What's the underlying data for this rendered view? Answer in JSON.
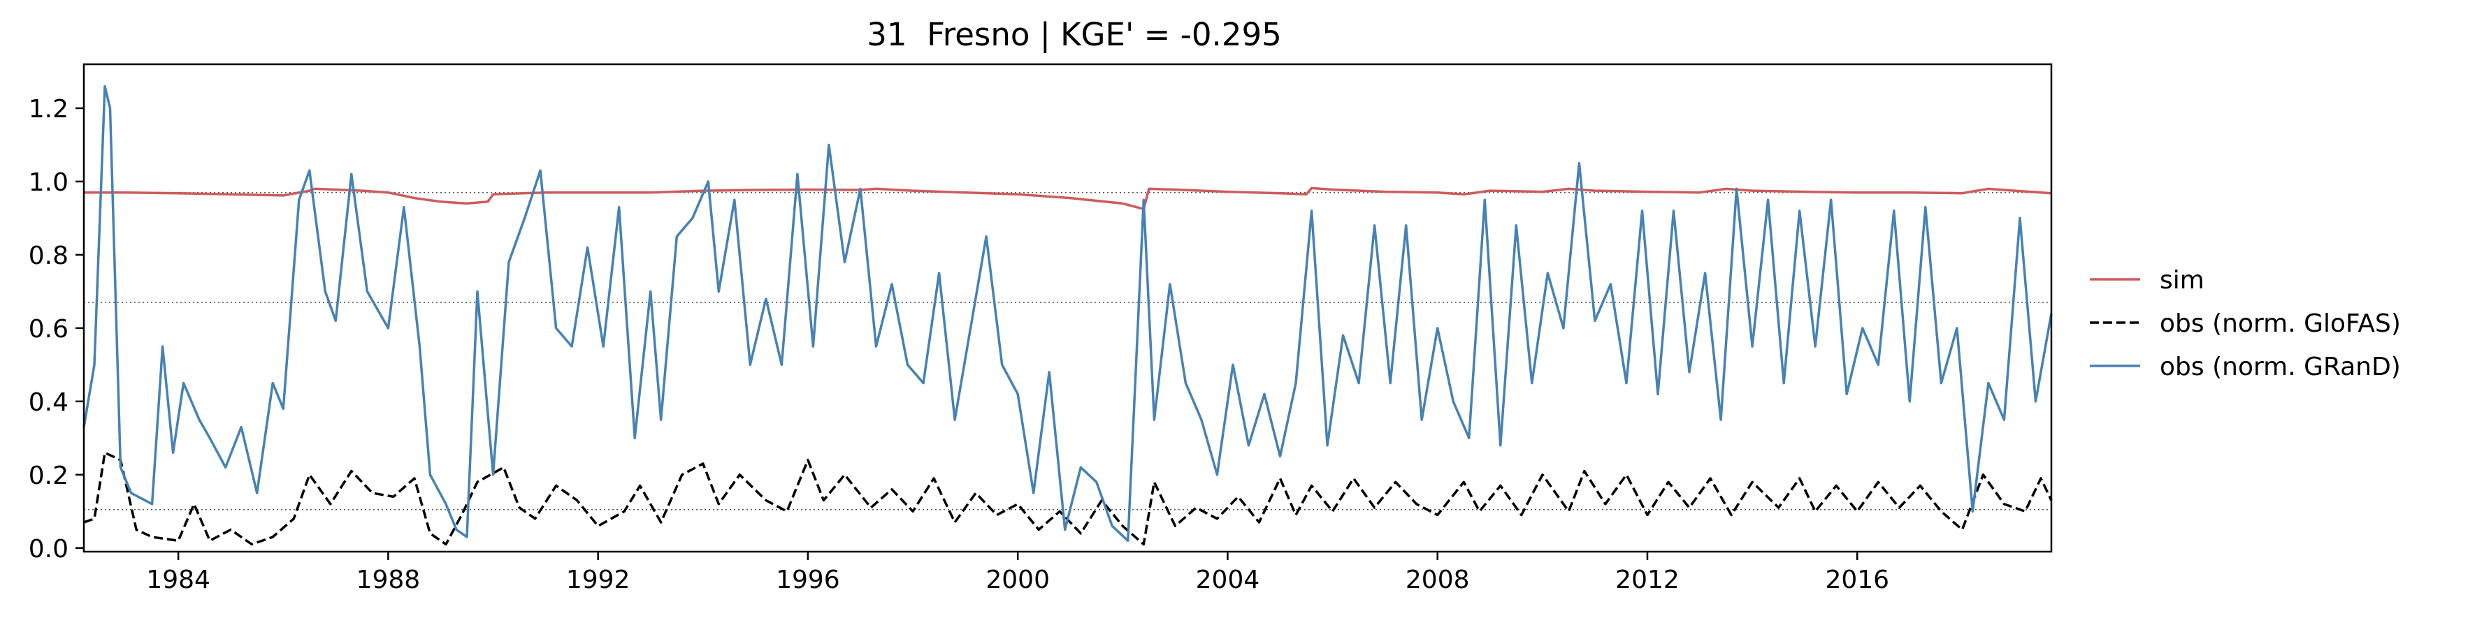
{
  "chart_data": {
    "type": "line",
    "title": "31  Fresno | KGE' = -0.295",
    "xlabel": "",
    "ylabel": "",
    "xlim": [
      1982.2,
      2019.7
    ],
    "ylim": [
      -0.01,
      1.32
    ],
    "x_ticks": [
      1984,
      1988,
      1992,
      1996,
      2000,
      2004,
      2008,
      2012,
      2016
    ],
    "y_ticks": [
      0.0,
      0.2,
      0.4,
      0.6,
      0.8,
      1.0,
      1.2
    ],
    "grid": false,
    "legend_position": "right",
    "reference_lines": [
      {
        "y": 0.97,
        "style": "dotted",
        "color": "#555555"
      },
      {
        "y": 0.67,
        "style": "dotted",
        "color": "#555555"
      },
      {
        "y": 0.105,
        "style": "dotted",
        "color": "#555555"
      }
    ],
    "series": [
      {
        "name": "sim",
        "color": "#cd5c5c",
        "dash": "solid",
        "x": [
          1982.2,
          1983.0,
          1984.0,
          1985.0,
          1986.0,
          1986.5,
          1986.6,
          1987.0,
          1987.5,
          1988.0,
          1988.5,
          1989.0,
          1989.5,
          1989.9,
          1990.0,
          1991.0,
          1992.0,
          1993.0,
          1994.0,
          1995.0,
          1996.0,
          1997.0,
          1997.3,
          1998.0,
          1999.0,
          2000.0,
          2001.0,
          2002.0,
          2002.4,
          2002.5,
          2003.0,
          2004.0,
          2005.0,
          2005.5,
          2005.6,
          2006.0,
          2007.0,
          2008.0,
          2008.5,
          2009.0,
          2010.0,
          2010.5,
          2011.0,
          2012.0,
          2013.0,
          2013.5,
          2014.0,
          2015.0,
          2016.0,
          2017.0,
          2018.0,
          2018.5,
          2019.0,
          2019.7
        ],
        "values": [
          0.97,
          0.97,
          0.968,
          0.965,
          0.962,
          0.975,
          0.98,
          0.978,
          0.975,
          0.97,
          0.955,
          0.945,
          0.94,
          0.945,
          0.965,
          0.97,
          0.97,
          0.97,
          0.975,
          0.977,
          0.978,
          0.977,
          0.98,
          0.975,
          0.97,
          0.965,
          0.955,
          0.94,
          0.925,
          0.98,
          0.978,
          0.972,
          0.968,
          0.965,
          0.982,
          0.978,
          0.972,
          0.97,
          0.965,
          0.975,
          0.972,
          0.98,
          0.975,
          0.972,
          0.97,
          0.98,
          0.975,
          0.972,
          0.97,
          0.97,
          0.968,
          0.98,
          0.975,
          0.968
        ]
      },
      {
        "name": "obs (norm. GloFAS)",
        "color": "#000000",
        "dash": "dashed",
        "x": [
          1982.2,
          1982.4,
          1982.6,
          1982.9,
          1983.2,
          1983.5,
          1984.0,
          1984.3,
          1984.6,
          1985.0,
          1985.4,
          1985.8,
          1986.2,
          1986.5,
          1986.9,
          1987.3,
          1987.7,
          1988.1,
          1988.5,
          1988.8,
          1989.1,
          1989.4,
          1989.7,
          1990.2,
          1990.5,
          1990.8,
          1991.2,
          1991.6,
          1992.0,
          1992.5,
          1992.8,
          1993.2,
          1993.6,
          1994.0,
          1994.3,
          1994.7,
          1995.2,
          1995.6,
          1996.0,
          1996.3,
          1996.7,
          1997.2,
          1997.6,
          1998.0,
          1998.4,
          1998.8,
          1999.2,
          1999.6,
          2000.0,
          2000.4,
          2000.8,
          2001.2,
          2001.6,
          2002.0,
          2002.4,
          2002.6,
          2003.0,
          2003.4,
          2003.8,
          2004.2,
          2004.6,
          2005.0,
          2005.3,
          2005.6,
          2006.0,
          2006.4,
          2006.8,
          2007.2,
          2007.6,
          2008.0,
          2008.5,
          2008.8,
          2009.2,
          2009.6,
          2010.0,
          2010.5,
          2010.8,
          2011.2,
          2011.6,
          2012.0,
          2012.4,
          2012.8,
          2013.2,
          2013.6,
          2014.0,
          2014.5,
          2014.9,
          2015.2,
          2015.6,
          2016.0,
          2016.4,
          2016.8,
          2017.2,
          2017.6,
          2018.0,
          2018.4,
          2018.8,
          2019.2,
          2019.5,
          2019.7
        ],
        "values": [
          0.07,
          0.08,
          0.26,
          0.24,
          0.05,
          0.03,
          0.02,
          0.12,
          0.02,
          0.05,
          0.01,
          0.03,
          0.08,
          0.2,
          0.12,
          0.21,
          0.15,
          0.14,
          0.19,
          0.04,
          0.01,
          0.09,
          0.18,
          0.22,
          0.11,
          0.08,
          0.17,
          0.13,
          0.06,
          0.1,
          0.17,
          0.07,
          0.2,
          0.23,
          0.12,
          0.2,
          0.13,
          0.1,
          0.24,
          0.13,
          0.2,
          0.11,
          0.16,
          0.1,
          0.19,
          0.07,
          0.15,
          0.09,
          0.12,
          0.05,
          0.1,
          0.04,
          0.13,
          0.06,
          0.01,
          0.18,
          0.06,
          0.11,
          0.08,
          0.14,
          0.07,
          0.19,
          0.09,
          0.17,
          0.1,
          0.19,
          0.11,
          0.18,
          0.12,
          0.09,
          0.18,
          0.1,
          0.17,
          0.09,
          0.2,
          0.1,
          0.21,
          0.12,
          0.2,
          0.09,
          0.18,
          0.11,
          0.19,
          0.09,
          0.18,
          0.11,
          0.19,
          0.1,
          0.17,
          0.1,
          0.18,
          0.11,
          0.17,
          0.1,
          0.05,
          0.2,
          0.12,
          0.1,
          0.19,
          0.13
        ]
      },
      {
        "name": "obs (norm. GRanD)",
        "color": "#4682b4",
        "dash": "solid",
        "x": [
          1982.2,
          1982.4,
          1982.6,
          1982.7,
          1982.9,
          1983.1,
          1983.5,
          1983.7,
          1983.9,
          1984.1,
          1984.4,
          1984.6,
          1984.9,
          1985.2,
          1985.5,
          1985.8,
          1986.0,
          1986.3,
          1986.5,
          1986.8,
          1987.0,
          1987.3,
          1987.6,
          1988.0,
          1988.3,
          1988.6,
          1988.8,
          1989.1,
          1989.3,
          1989.5,
          1989.7,
          1990.0,
          1990.3,
          1990.6,
          1990.9,
          1991.2,
          1991.5,
          1991.8,
          1992.1,
          1992.4,
          1992.7,
          1993.0,
          1993.2,
          1993.5,
          1993.8,
          1994.1,
          1994.3,
          1994.6,
          1994.9,
          1995.2,
          1995.5,
          1995.8,
          1996.1,
          1996.4,
          1996.7,
          1997.0,
          1997.3,
          1997.6,
          1997.9,
          1998.2,
          1998.5,
          1998.8,
          1999.1,
          1999.4,
          1999.7,
          2000.0,
          2000.3,
          2000.6,
          2000.9,
          2001.2,
          2001.5,
          2001.8,
          2002.1,
          2002.4,
          2002.6,
          2002.9,
          2003.2,
          2003.5,
          2003.8,
          2004.1,
          2004.4,
          2004.7,
          2005.0,
          2005.3,
          2005.6,
          2005.9,
          2006.2,
          2006.5,
          2006.8,
          2007.1,
          2007.4,
          2007.7,
          2008.0,
          2008.3,
          2008.6,
          2008.9,
          2009.2,
          2009.5,
          2009.8,
          2010.1,
          2010.4,
          2010.7,
          2011.0,
          2011.3,
          2011.6,
          2011.9,
          2012.2,
          2012.5,
          2012.8,
          2013.1,
          2013.4,
          2013.7,
          2014.0,
          2014.3,
          2014.6,
          2014.9,
          2015.2,
          2015.5,
          2015.8,
          2016.1,
          2016.4,
          2016.7,
          2017.0,
          2017.3,
          2017.6,
          2017.9,
          2018.2,
          2018.5,
          2018.8,
          2019.1,
          2019.4,
          2019.7
        ],
        "values": [
          0.33,
          0.5,
          1.26,
          1.2,
          0.22,
          0.15,
          0.12,
          0.55,
          0.26,
          0.45,
          0.35,
          0.3,
          0.22,
          0.33,
          0.15,
          0.45,
          0.38,
          0.95,
          1.03,
          0.7,
          0.62,
          1.02,
          0.7,
          0.6,
          0.93,
          0.55,
          0.2,
          0.12,
          0.05,
          0.03,
          0.7,
          0.2,
          0.78,
          0.9,
          1.03,
          0.6,
          0.55,
          0.82,
          0.55,
          0.93,
          0.3,
          0.7,
          0.35,
          0.85,
          0.9,
          1.0,
          0.7,
          0.95,
          0.5,
          0.68,
          0.5,
          1.02,
          0.55,
          1.1,
          0.78,
          0.98,
          0.55,
          0.72,
          0.5,
          0.45,
          0.75,
          0.35,
          0.6,
          0.85,
          0.5,
          0.42,
          0.15,
          0.48,
          0.05,
          0.22,
          0.18,
          0.06,
          0.02,
          0.95,
          0.35,
          0.72,
          0.45,
          0.35,
          0.2,
          0.5,
          0.28,
          0.42,
          0.25,
          0.45,
          0.92,
          0.28,
          0.58,
          0.45,
          0.88,
          0.45,
          0.88,
          0.35,
          0.6,
          0.4,
          0.3,
          0.95,
          0.28,
          0.88,
          0.45,
          0.75,
          0.6,
          1.05,
          0.62,
          0.72,
          0.45,
          0.92,
          0.42,
          0.92,
          0.48,
          0.75,
          0.35,
          0.98,
          0.55,
          0.95,
          0.45,
          0.92,
          0.55,
          0.95,
          0.42,
          0.6,
          0.5,
          0.92,
          0.4,
          0.93,
          0.45,
          0.6,
          0.1,
          0.45,
          0.35,
          0.9,
          0.4,
          0.64
        ]
      }
    ]
  }
}
